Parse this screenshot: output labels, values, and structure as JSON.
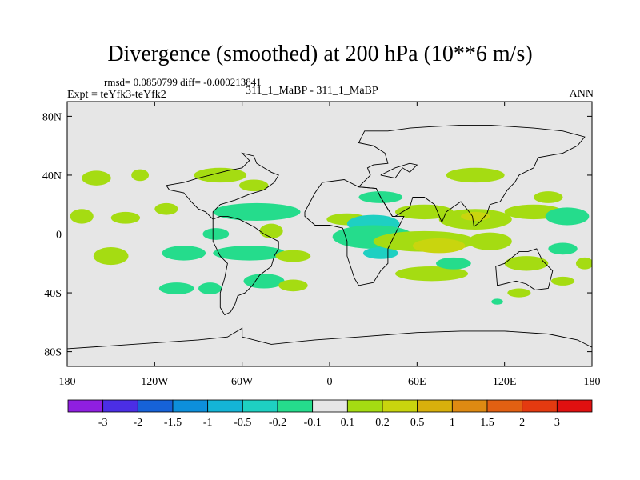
{
  "header": {
    "title": "Divergence (smoothed) at 200 hPa (10**6 m/s)",
    "stats": "rmsd= 0.0850799 diff= -0.000213841",
    "experiment": "Expt = teYfk3-teYfk2",
    "cases": "311_1_MaBP - 311_1_MaBP",
    "period": "ANN"
  },
  "chart_data": {
    "type": "heatmap",
    "title": "Divergence (smoothed) at 200 hPa (10**6 m/s)",
    "units": "10**6 m/s",
    "x_range": [
      -180,
      180
    ],
    "y_range": [
      -90,
      90
    ],
    "x_ticks": [
      {
        "value": -180,
        "label": "180"
      },
      {
        "value": -120,
        "label": "120W"
      },
      {
        "value": -60,
        "label": "60W"
      },
      {
        "value": 0,
        "label": "0"
      },
      {
        "value": 60,
        "label": "60E"
      },
      {
        "value": 120,
        "label": "120E"
      },
      {
        "value": 180,
        "label": "180"
      }
    ],
    "y_ticks": [
      {
        "value": 80,
        "label": "80N"
      },
      {
        "value": 40,
        "label": "40N"
      },
      {
        "value": 0,
        "label": "0"
      },
      {
        "value": -40,
        "label": "40S"
      },
      {
        "value": -80,
        "label": "80S"
      }
    ],
    "colorbar": {
      "colors": [
        "#8f1fe0",
        "#4b2ee5",
        "#1662d8",
        "#0d8fdb",
        "#14b4d6",
        "#1ed0c2",
        "#25dc8c",
        "#e6e6e6",
        "#a5dc12",
        "#c9d50e",
        "#d8b00c",
        "#de8a12",
        "#e26012",
        "#e43a10",
        "#e01010"
      ],
      "labels": [
        "-3",
        "-2",
        "-1.5",
        "-1",
        "-0.5",
        "-0.2",
        "-0.1",
        "0.1",
        "0.2",
        "0.5",
        "1",
        "1.5",
        "2",
        "3"
      ]
    },
    "blobs": [
      {
        "lon": -160,
        "lat": 38,
        "rx": 10,
        "ry": 5,
        "level": 0.15
      },
      {
        "lon": -130,
        "lat": 40,
        "rx": 6,
        "ry": 4,
        "level": 0.15
      },
      {
        "lon": -75,
        "lat": 40,
        "rx": 18,
        "ry": 5,
        "level": 0.15
      },
      {
        "lon": -52,
        "lat": 33,
        "rx": 10,
        "ry": 4,
        "level": 0.15
      },
      {
        "lon": -170,
        "lat": 12,
        "rx": 8,
        "ry": 5,
        "level": 0.15
      },
      {
        "lon": -140,
        "lat": 11,
        "rx": 10,
        "ry": 4,
        "level": 0.15
      },
      {
        "lon": -112,
        "lat": 17,
        "rx": 8,
        "ry": 4,
        "level": 0.15
      },
      {
        "lon": -50,
        "lat": 15,
        "rx": 30,
        "ry": 6,
        "level": -0.15
      },
      {
        "lon": -40,
        "lat": 2,
        "rx": 8,
        "ry": 5,
        "level": 0.15
      },
      {
        "lon": -78,
        "lat": 0,
        "rx": 9,
        "ry": 4,
        "level": -0.15
      },
      {
        "lon": -150,
        "lat": -15,
        "rx": 12,
        "ry": 6,
        "level": 0.15
      },
      {
        "lon": -100,
        "lat": -13,
        "rx": 15,
        "ry": 5,
        "level": -0.15
      },
      {
        "lon": -55,
        "lat": -13,
        "rx": 25,
        "ry": 5,
        "level": -0.15
      },
      {
        "lon": -25,
        "lat": -15,
        "rx": 12,
        "ry": 4,
        "level": 0.15
      },
      {
        "lon": -105,
        "lat": -37,
        "rx": 12,
        "ry": 4,
        "level": -0.15
      },
      {
        "lon": -82,
        "lat": -37,
        "rx": 8,
        "ry": 4,
        "level": -0.15
      },
      {
        "lon": -45,
        "lat": -32,
        "rx": 14,
        "ry": 5,
        "level": -0.15
      },
      {
        "lon": -25,
        "lat": -35,
        "rx": 10,
        "ry": 4,
        "level": 0.15
      },
      {
        "lon": 12,
        "lat": 10,
        "rx": 14,
        "ry": 4,
        "level": 0.15
      },
      {
        "lon": 30,
        "lat": 7,
        "rx": 18,
        "ry": 6,
        "level": -0.3
      },
      {
        "lon": 30,
        "lat": -2,
        "rx": 28,
        "ry": 8,
        "level": -0.15
      },
      {
        "lon": 35,
        "lat": -13,
        "rx": 12,
        "ry": 4,
        "level": -0.3
      },
      {
        "lon": 35,
        "lat": 25,
        "rx": 15,
        "ry": 4,
        "level": -0.15
      },
      {
        "lon": 65,
        "lat": 15,
        "rx": 20,
        "ry": 5,
        "level": 0.15
      },
      {
        "lon": 65,
        "lat": -5,
        "rx": 35,
        "ry": 7,
        "level": 0.15
      },
      {
        "lon": 75,
        "lat": -8,
        "rx": 18,
        "ry": 5,
        "level": 0.3
      },
      {
        "lon": 100,
        "lat": 10,
        "rx": 25,
        "ry": 7,
        "level": 0.15
      },
      {
        "lon": 100,
        "lat": 12,
        "rx": 10,
        "ry": 3,
        "level": 0.3
      },
      {
        "lon": 110,
        "lat": -5,
        "rx": 15,
        "ry": 6,
        "level": 0.15
      },
      {
        "lon": 100,
        "lat": 40,
        "rx": 20,
        "ry": 5,
        "level": 0.15
      },
      {
        "lon": 140,
        "lat": 15,
        "rx": 20,
        "ry": 5,
        "level": 0.15
      },
      {
        "lon": 163,
        "lat": 12,
        "rx": 15,
        "ry": 6,
        "level": -0.15
      },
      {
        "lon": 150,
        "lat": 25,
        "rx": 10,
        "ry": 4,
        "level": 0.15
      },
      {
        "lon": 135,
        "lat": -20,
        "rx": 15,
        "ry": 5,
        "level": 0.15
      },
      {
        "lon": 160,
        "lat": -10,
        "rx": 10,
        "ry": 4,
        "level": -0.15
      },
      {
        "lon": 70,
        "lat": -27,
        "rx": 25,
        "ry": 5,
        "level": 0.15
      },
      {
        "lon": 85,
        "lat": -20,
        "rx": 12,
        "ry": 4,
        "level": -0.15
      },
      {
        "lon": 175,
        "lat": -20,
        "rx": 6,
        "ry": 4,
        "level": 0.15
      },
      {
        "lon": 130,
        "lat": -40,
        "rx": 8,
        "ry": 3,
        "level": 0.15
      },
      {
        "lon": 160,
        "lat": -32,
        "rx": 8,
        "ry": 3,
        "level": 0.15
      },
      {
        "lon": 115,
        "lat": -46,
        "rx": 4,
        "ry": 2,
        "level": -0.15
      }
    ],
    "coastlines": [
      {
        "name": "south-america",
        "points": [
          [
            -80,
            10
          ],
          [
            -75,
            12
          ],
          [
            -70,
            12
          ],
          [
            -62,
            10
          ],
          [
            -52,
            5
          ],
          [
            -45,
            0
          ],
          [
            -35,
            -5
          ],
          [
            -35,
            -10
          ],
          [
            -38,
            -15
          ],
          [
            -40,
            -22
          ],
          [
            -48,
            -28
          ],
          [
            -53,
            -35
          ],
          [
            -58,
            -40
          ],
          [
            -63,
            -42
          ],
          [
            -65,
            -48
          ],
          [
            -68,
            -53
          ],
          [
            -72,
            -55
          ],
          [
            -75,
            -50
          ],
          [
            -75,
            -40
          ],
          [
            -72,
            -30
          ],
          [
            -70,
            -20
          ],
          [
            -75,
            -15
          ],
          [
            -80,
            -5
          ],
          [
            -80,
            5
          ],
          [
            -80,
            10
          ]
        ]
      },
      {
        "name": "north-america",
        "points": [
          [
            -80,
            10
          ],
          [
            -85,
            15
          ],
          [
            -90,
            17
          ],
          [
            -95,
            22
          ],
          [
            -100,
            28
          ],
          [
            -110,
            30
          ],
          [
            -112,
            33
          ],
          [
            -100,
            35
          ],
          [
            -90,
            38
          ],
          [
            -82,
            40
          ],
          [
            -70,
            43
          ],
          [
            -60,
            45
          ],
          [
            -55,
            50
          ],
          [
            -60,
            55
          ],
          [
            -52,
            53
          ],
          [
            -50,
            48
          ],
          [
            -45,
            45
          ],
          [
            -40,
            42
          ],
          [
            -35,
            40
          ],
          [
            -38,
            35
          ],
          [
            -45,
            30
          ],
          [
            -55,
            27
          ],
          [
            -65,
            23
          ],
          [
            -75,
            20
          ],
          [
            -80,
            15
          ],
          [
            -80,
            10
          ]
        ]
      },
      {
        "name": "africa",
        "points": [
          [
            -17,
            15
          ],
          [
            -10,
            28
          ],
          [
            -5,
            35
          ],
          [
            10,
            37
          ],
          [
            20,
            32
          ],
          [
            32,
            31
          ],
          [
            35,
            25
          ],
          [
            43,
            12
          ],
          [
            51,
            12
          ],
          [
            45,
            0
          ],
          [
            40,
            -10
          ],
          [
            40,
            -20
          ],
          [
            35,
            -25
          ],
          [
            30,
            -33
          ],
          [
            20,
            -35
          ],
          [
            17,
            -30
          ],
          [
            12,
            -15
          ],
          [
            12,
            -5
          ],
          [
            9,
            4
          ],
          [
            0,
            6
          ],
          [
            -10,
            6
          ],
          [
            -17,
            12
          ],
          [
            -17,
            15
          ]
        ]
      },
      {
        "name": "asia",
        "points": [
          [
            20,
            32
          ],
          [
            28,
            40
          ],
          [
            26,
            45
          ],
          [
            30,
            47
          ],
          [
            40,
            48
          ],
          [
            38,
            55
          ],
          [
            30,
            60
          ],
          [
            20,
            62
          ],
          [
            24,
            70
          ],
          [
            40,
            70
          ],
          [
            55,
            72
          ],
          [
            70,
            73
          ],
          [
            90,
            74
          ],
          [
            110,
            74
          ],
          [
            140,
            72
          ],
          [
            160,
            70
          ],
          [
            175,
            66
          ],
          [
            170,
            60
          ],
          [
            160,
            55
          ],
          [
            143,
            52
          ],
          [
            140,
            45
          ],
          [
            130,
            40
          ],
          [
            127,
            35
          ],
          [
            122,
            30
          ],
          [
            117,
            22
          ],
          [
            110,
            20
          ],
          [
            108,
            14
          ],
          [
            103,
            8
          ],
          [
            99,
            5
          ],
          [
            98,
            12
          ],
          [
            95,
            16
          ],
          [
            90,
            22
          ],
          [
            80,
            15
          ],
          [
            77,
            8
          ],
          [
            72,
            20
          ],
          [
            65,
            25
          ],
          [
            57,
            25
          ],
          [
            55,
            18
          ],
          [
            45,
            12
          ],
          [
            43,
            12
          ],
          [
            35,
            25
          ],
          [
            32,
            31
          ],
          [
            20,
            32
          ]
        ]
      },
      {
        "name": "arabia-mediterranean",
        "points": [
          [
            35,
            40
          ],
          [
            45,
            38
          ],
          [
            50,
            45
          ],
          [
            55,
            42
          ],
          [
            60,
            47
          ],
          [
            55,
            48
          ],
          [
            45,
            45
          ],
          [
            35,
            40
          ]
        ]
      },
      {
        "name": "australia",
        "points": [
          [
            114,
            -22
          ],
          [
            120,
            -20
          ],
          [
            130,
            -12
          ],
          [
            136,
            -12
          ],
          [
            142,
            -10
          ],
          [
            146,
            -18
          ],
          [
            153,
            -25
          ],
          [
            150,
            -37
          ],
          [
            141,
            -38
          ],
          [
            135,
            -34
          ],
          [
            128,
            -32
          ],
          [
            115,
            -35
          ],
          [
            114,
            -22
          ]
        ]
      },
      {
        "name": "antarctica",
        "points": [
          [
            -180,
            -78
          ],
          [
            -150,
            -76
          ],
          [
            -120,
            -74
          ],
          [
            -90,
            -72
          ],
          [
            -70,
            -70
          ],
          [
            -60,
            -64
          ],
          [
            -60,
            -70
          ],
          [
            -40,
            -75
          ],
          [
            -10,
            -72
          ],
          [
            20,
            -70
          ],
          [
            60,
            -67
          ],
          [
            90,
            -66
          ],
          [
            120,
            -66
          ],
          [
            150,
            -68
          ],
          [
            170,
            -72
          ],
          [
            180,
            -77
          ],
          [
            180,
            -90
          ],
          [
            -180,
            -90
          ],
          [
            -180,
            -78
          ]
        ]
      }
    ]
  }
}
